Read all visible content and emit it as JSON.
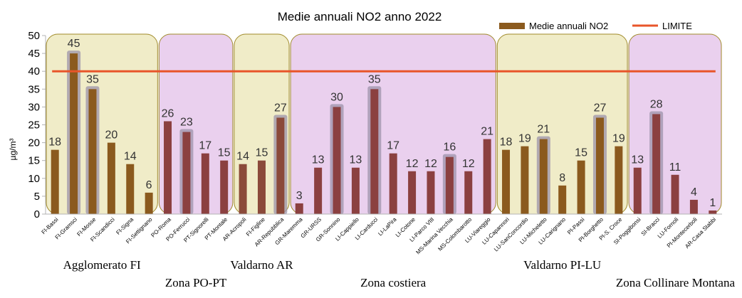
{
  "chart_data": {
    "type": "bar",
    "title": "Medie annuali NO2 anno 2022",
    "ylabel": "µg/m³",
    "xlabel": "",
    "ylim": [
      0,
      50
    ],
    "yticks": [
      0,
      5,
      10,
      15,
      20,
      25,
      30,
      35,
      40,
      45,
      50
    ],
    "grid": false,
    "legend_position": "top-right",
    "categories": [
      "FI-Bassi",
      "FI-Gramsci",
      "FI-Mosse",
      "FI-Scandicci",
      "FI-Signa",
      "FI-Settignano",
      "PO-Roma",
      "PO-Ferrucci",
      "PT-Signorelli",
      "PT-Montale",
      "AR-Acropoli",
      "FI-Figline",
      "AR-Repubblica",
      "GR-Maremma",
      "GR-URSS",
      "GR-Sonnino",
      "LI-Cappiello",
      "LI-Carducci",
      "LI-LaPira",
      "LI-Cotone",
      "LI-Parco VIII",
      "MS-Marina Vecchia",
      "MS-Colombarotto",
      "LU-Viareggio",
      "LU-Capannori",
      "LU-SanConcordio",
      "LU-Micheletto",
      "LU-Carignano",
      "PI-Passi",
      "PI-Borghetto",
      "PI-S. Croce",
      "SI-Poggibonsi",
      "SI-Bracci",
      "LU-Fornoli",
      "PI-Montecerboli",
      "AR-Casa Stabbi"
    ],
    "series": [
      {
        "name": "Medie annuali NO2",
        "color": "#8b5a1e",
        "values": [
          18,
          45,
          35,
          20,
          14,
          6,
          26,
          23,
          17,
          15,
          14,
          15,
          27,
          3,
          13,
          30,
          13,
          35,
          17,
          12,
          12,
          16,
          12,
          21,
          18,
          19,
          21,
          8,
          15,
          27,
          19,
          13,
          28,
          11,
          4,
          1
        ],
        "highlighted": [
          false,
          true,
          true,
          false,
          false,
          false,
          false,
          true,
          false,
          false,
          false,
          false,
          true,
          false,
          false,
          true,
          false,
          true,
          false,
          false,
          false,
          true,
          false,
          false,
          false,
          false,
          true,
          false,
          false,
          true,
          false,
          false,
          true,
          false,
          false,
          false
        ]
      },
      {
        "name": "LIMITE",
        "type": "line",
        "color": "#e8552a",
        "value": 40
      }
    ],
    "zones": [
      {
        "name": "Agglomerato FI",
        "start": 0,
        "end": 5,
        "fill": "#f0ecc8",
        "stroke": "#a08a2a",
        "bar_color": "#8b5a1e"
      },
      {
        "name": "Zona PO-PT",
        "start": 6,
        "end": 9,
        "fill": "#ead0ee",
        "stroke": "#a08a2a",
        "bar_color": "#8b4040"
      },
      {
        "name": "Valdarno AR",
        "start": 10,
        "end": 12,
        "fill": "#f0ecc8",
        "stroke": "#a08a2a",
        "bar_color": "#8b4a3a"
      },
      {
        "name": "Zona costiera",
        "start": 13,
        "end": 23,
        "fill": "#ead0ee",
        "stroke": "#a08a2a",
        "bar_color": "#8b4040"
      },
      {
        "name": "Valdarno PI-LU",
        "start": 24,
        "end": 30,
        "fill": "#f0ecc8",
        "stroke": "#a08a2a",
        "bar_color": "#8b5a1e"
      },
      {
        "name": "Zona Collinare Montana",
        "start": 31,
        "end": 35,
        "fill": "#ead0ee",
        "stroke": "#a08a2a",
        "bar_color": "#8b4040"
      }
    ]
  }
}
